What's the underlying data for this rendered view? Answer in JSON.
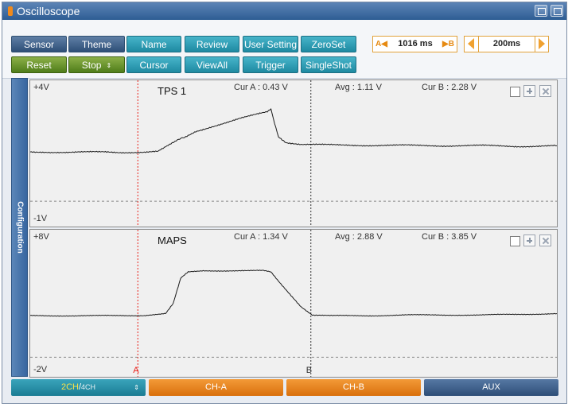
{
  "window": {
    "title": "Oscilloscope"
  },
  "titlebar_buttons": [
    {
      "name": "layout-icon"
    },
    {
      "name": "window-toggle-icon"
    }
  ],
  "toolbar": {
    "row1": [
      {
        "name": "sensor-button",
        "label": "Sensor",
        "style": "blue"
      },
      {
        "name": "theme-button",
        "label": "Theme",
        "style": "blue"
      },
      {
        "name": "name-button",
        "label": "Name",
        "style": "teal"
      },
      {
        "name": "review-button",
        "label": "Review",
        "style": "teal"
      },
      {
        "name": "user-setting-button",
        "label": "User Setting",
        "style": "teal"
      },
      {
        "name": "zeroset-button",
        "label": "ZeroSet",
        "style": "teal"
      }
    ],
    "row2": [
      {
        "name": "reset-button",
        "label": "Reset",
        "style": "green"
      },
      {
        "name": "stop-button",
        "label": "Stop",
        "style": "green",
        "updown": "⇕"
      },
      {
        "name": "cursor-button",
        "label": "Cursor",
        "style": "teal"
      },
      {
        "name": "viewall-button",
        "label": "ViewAll",
        "style": "teal"
      },
      {
        "name": "trigger-button",
        "label": "Trigger",
        "style": "teal"
      },
      {
        "name": "singleshot-button",
        "label": "SingleShot",
        "style": "teal"
      }
    ],
    "cursor_time": {
      "left_marker": "A◀",
      "value": "1016 ms",
      "right_marker": "▶B"
    },
    "time_div": {
      "value": "200ms"
    }
  },
  "config_tab": {
    "label": "Configuration"
  },
  "channels": [
    {
      "id": "tps",
      "title": "TPS 1",
      "top_label": "+4V",
      "bottom_label": "-1V",
      "cur_a": "Cur A : 0.43 V",
      "avg": "Avg : 1.11 V",
      "cur_b": "Cur B : 2.28 V",
      "trace": [
        [
          0,
          2.4
        ],
        [
          2,
          2.4
        ],
        [
          5,
          2.38
        ],
        [
          8,
          2.39
        ],
        [
          10,
          2.4
        ],
        [
          12,
          2.38
        ],
        [
          15,
          2.39
        ],
        [
          17,
          2.42
        ],
        [
          18,
          2.63
        ],
        [
          19.4,
          2.95
        ],
        [
          20.5,
          3.1
        ],
        [
          22,
          3.4
        ],
        [
          24,
          3.62
        ],
        [
          26,
          3.82
        ],
        [
          28,
          4.03
        ],
        [
          30,
          4.22
        ],
        [
          31.5,
          4.36
        ],
        [
          32,
          4.5
        ],
        [
          32.3,
          4.05
        ],
        [
          33,
          3.15
        ],
        [
          34,
          2.87
        ],
        [
          36,
          2.77
        ],
        [
          40,
          2.74
        ],
        [
          45,
          2.72
        ],
        [
          50,
          2.72
        ],
        [
          55,
          2.7
        ],
        [
          60,
          2.71
        ],
        [
          65,
          2.67
        ],
        [
          70,
          2.7
        ]
      ]
    },
    {
      "id": "maps",
      "title": "MAPS",
      "top_label": "+8V",
      "bottom_label": "-2V",
      "cur_a": "Cur A : 1.34 V",
      "avg": "Avg : 2.88 V",
      "cur_b": "Cur B : 3.85 V",
      "trace": [
        [
          0,
          2.95
        ],
        [
          5,
          2.95
        ],
        [
          10,
          2.95
        ],
        [
          15,
          2.97
        ],
        [
          18,
          3.1
        ],
        [
          19,
          3.8
        ],
        [
          20,
          5.6
        ],
        [
          21,
          6.05
        ],
        [
          23,
          6.15
        ],
        [
          26,
          6.15
        ],
        [
          29,
          6.15
        ],
        [
          31,
          6.15
        ],
        [
          32,
          6.05
        ],
        [
          33,
          5.4
        ],
        [
          34.5,
          4.5
        ],
        [
          36,
          3.6
        ],
        [
          37.5,
          3.0
        ],
        [
          40,
          2.95
        ],
        [
          45,
          2.95
        ],
        [
          50,
          3.0
        ],
        [
          55,
          3.0
        ],
        [
          60,
          3.0
        ],
        [
          65,
          3.05
        ],
        [
          70,
          3.1
        ]
      ]
    }
  ],
  "cursors": {
    "a_label": "A",
    "b_label": "B",
    "a_position": 14.3,
    "b_position": 37.3
  },
  "bottom_bar": {
    "channel_select": {
      "active": "2CH",
      "sep": "/",
      "inactive": "4CH",
      "updown": "⇕"
    },
    "ch_a": "CH-A",
    "ch_b": "CH-B",
    "aux": "AUX"
  },
  "colors": {
    "cursor_a": "#e8221b",
    "cursor_b": "#333333",
    "trace": "#1a1a1a",
    "accent_orange": "#e8841a"
  }
}
